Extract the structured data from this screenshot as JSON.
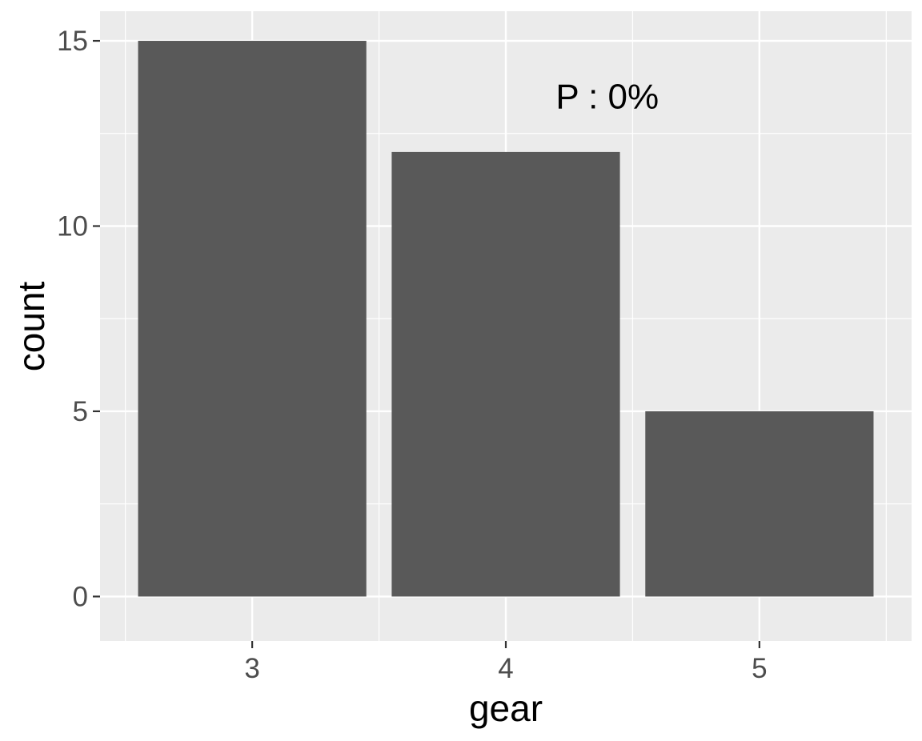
{
  "chart_data": {
    "type": "bar",
    "categories": [
      "3",
      "4",
      "5"
    ],
    "values": [
      15,
      12,
      5
    ],
    "xlabel": "gear",
    "ylabel": "count",
    "ylim": [
      -1.2,
      15.8
    ],
    "yticks": [
      0,
      5,
      10,
      15
    ],
    "ytick_labels": [
      "0",
      "5",
      "10",
      "15"
    ],
    "grid": true,
    "annotation": {
      "text": "P : 0%",
      "x_category": "4",
      "y": 13.5
    },
    "colors": {
      "panel_background": "#ebebeb",
      "grid_major": "#ffffff",
      "bar_fill": "#595959",
      "tick_text": "#4d4d4d",
      "axis_title": "#000000"
    }
  }
}
